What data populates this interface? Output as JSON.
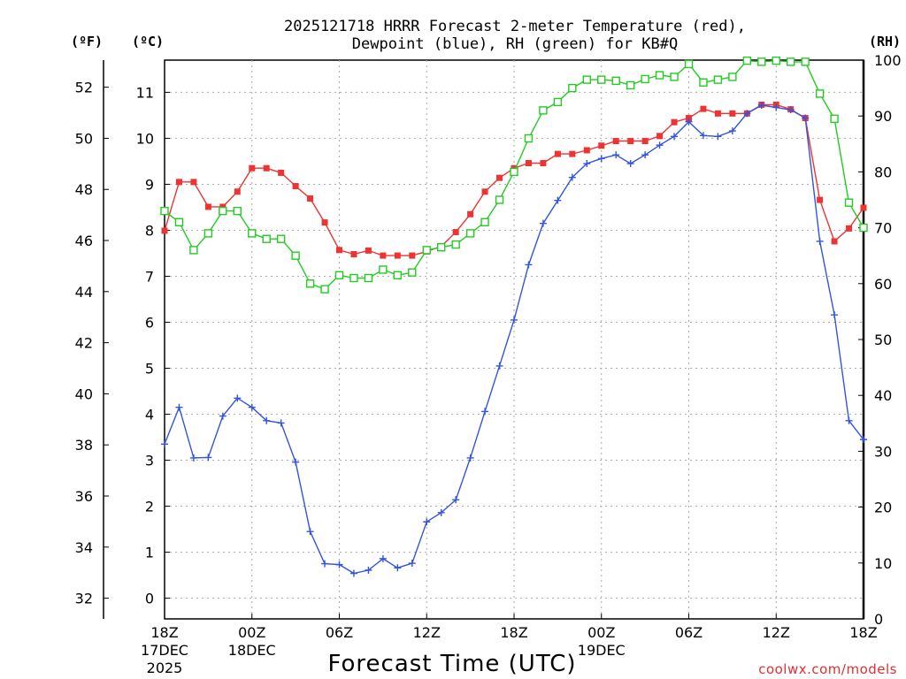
{
  "chart_data": {
    "type": "line",
    "title_line1": "2025121718 HRRR Forecast 2-meter Temperature (red),",
    "title_line2": "Dewpoint (blue), RH (green) for KB#Q",
    "xlabel": "Forecast Time (UTC)",
    "watermark": "coolwx.com/models",
    "left_outer_axis_label": "(ºF)",
    "left_inner_axis_label": "(ºC)",
    "right_axis_label": "(RH)",
    "x_range_hours": [
      0,
      48
    ],
    "celsius_range": [
      -0.45,
      11.7
    ],
    "rh_range": [
      0,
      100
    ],
    "fahrenheit_ticks": [
      "32",
      "34",
      "36",
      "38",
      "40",
      "42",
      "44",
      "46",
      "48",
      "50",
      "52"
    ],
    "celsius_ticks": [
      "0",
      "1",
      "2",
      "3",
      "4",
      "5",
      "6",
      "7",
      "8",
      "9",
      "10",
      "11"
    ],
    "rh_ticks": [
      "0",
      "10",
      "20",
      "30",
      "40",
      "50",
      "60",
      "70",
      "80",
      "90",
      "100"
    ],
    "x_ticks": [
      {
        "hour": 0,
        "label": "18Z",
        "label2": "17DEC",
        "label3": "2025"
      },
      {
        "hour": 6,
        "label": "00Z",
        "label2": "18DEC",
        "label3": ""
      },
      {
        "hour": 12,
        "label": "06Z",
        "label2": "",
        "label3": ""
      },
      {
        "hour": 18,
        "label": "12Z",
        "label2": "",
        "label3": ""
      },
      {
        "hour": 24,
        "label": "18Z",
        "label2": "",
        "label3": ""
      },
      {
        "hour": 30,
        "label": "00Z",
        "label2": "19DEC",
        "label3": ""
      },
      {
        "hour": 36,
        "label": "06Z",
        "label2": "",
        "label3": ""
      },
      {
        "hour": 42,
        "label": "12Z",
        "label2": "",
        "label3": ""
      },
      {
        "hour": 48,
        "label": "18Z",
        "label2": "",
        "label3": ""
      }
    ],
    "series": [
      {
        "name": "Temperature",
        "units": "C",
        "color": "#ee3333",
        "marker": "filled-square",
        "axis": "celsius",
        "values": [
          7.99,
          9.05,
          9.05,
          8.51,
          8.51,
          8.84,
          9.35,
          9.35,
          9.25,
          8.96,
          8.69,
          8.17,
          7.57,
          7.48,
          7.56,
          7.45,
          7.45,
          7.45,
          7.54,
          7.65,
          7.96,
          8.35,
          8.84,
          9.14,
          9.35,
          9.46,
          9.46,
          9.66,
          9.66,
          9.74,
          9.84,
          9.94,
          9.94,
          9.94,
          10.05,
          10.35,
          10.44,
          10.64,
          10.54,
          10.54,
          10.54,
          10.73,
          10.73,
          10.63,
          10.44,
          8.66,
          7.76,
          8.04,
          8.49
        ]
      },
      {
        "name": "Dewpoint",
        "units": "C",
        "color": "#3355dd",
        "marker": "plus",
        "axis": "celsius",
        "values": [
          3.35,
          4.15,
          3.05,
          3.06,
          3.96,
          4.35,
          4.15,
          3.86,
          3.81,
          2.96,
          1.45,
          0.75,
          0.73,
          0.54,
          0.61,
          0.86,
          0.66,
          0.76,
          1.66,
          1.86,
          2.14,
          3.05,
          4.06,
          5.05,
          6.05,
          7.25,
          8.15,
          8.65,
          9.15,
          9.45,
          9.56,
          9.64,
          9.45,
          9.64,
          9.85,
          10.04,
          10.36,
          10.06,
          10.04,
          10.16,
          10.54,
          10.72,
          10.67,
          10.62,
          10.44,
          7.76,
          6.16,
          3.86,
          3.45
        ]
      },
      {
        "name": "Relative Humidity",
        "units": "%",
        "color": "#22cc22",
        "marker": "open-square",
        "axis": "rh",
        "values": [
          73,
          71,
          66,
          69,
          73,
          73,
          69,
          68,
          68,
          65,
          60,
          59,
          61.5,
          61,
          61,
          62.5,
          61.5,
          62,
          66,
          66.5,
          67,
          69,
          71,
          75,
          80,
          86,
          91,
          92.5,
          95,
          96.5,
          96.5,
          96.3,
          95.5,
          96.6,
          97.3,
          97,
          99.3,
          96,
          96.5,
          97,
          99.9,
          99.7,
          99.9,
          99.7,
          99.7,
          94,
          89.5,
          74.5,
          70
        ]
      }
    ]
  }
}
